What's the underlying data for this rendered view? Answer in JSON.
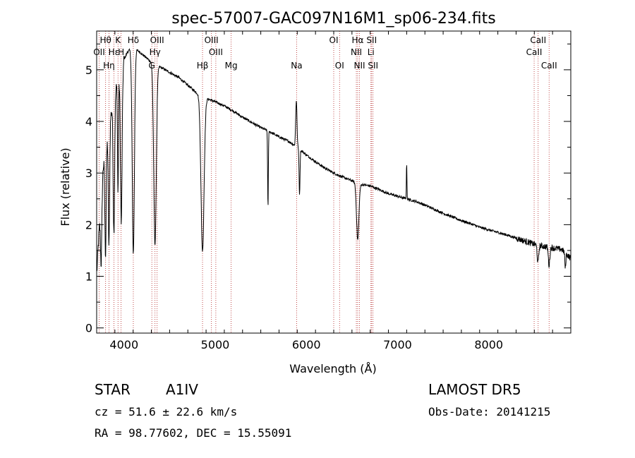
{
  "chart_data": {
    "type": "line",
    "title": "spec-57007-GAC097N16M1_sp06-234.fits",
    "xlabel": "Wavelength (Å)",
    "ylabel": "Flux (relative)",
    "xlim": [
      3700,
      8900
    ],
    "ylim": [
      -0.1,
      5.75
    ],
    "xticks": [
      4000,
      5000,
      6000,
      7000,
      8000
    ],
    "yticks": [
      0,
      1,
      2,
      3,
      4,
      5
    ],
    "grid": false,
    "colors": {
      "spectrum": "#000000",
      "lines": "#b22222"
    },
    "continuum": [
      [
        3700,
        1.0
      ],
      [
        3760,
        3.0
      ],
      [
        3820,
        3.7
      ],
      [
        3880,
        4.4
      ],
      [
        3950,
        4.9
      ],
      [
        4000,
        5.2
      ],
      [
        4040,
        5.35
      ],
      [
        4100,
        5.45
      ],
      [
        4200,
        5.3
      ],
      [
        4300,
        5.15
      ],
      [
        4400,
        5.05
      ],
      [
        4500,
        4.95
      ],
      [
        4600,
        4.85
      ],
      [
        4700,
        4.7
      ],
      [
        4800,
        4.55
      ],
      [
        4900,
        4.45
      ],
      [
        5000,
        4.38
      ],
      [
        5100,
        4.3
      ],
      [
        5200,
        4.2
      ],
      [
        5300,
        4.08
      ],
      [
        5400,
        3.98
      ],
      [
        5500,
        3.88
      ],
      [
        5600,
        3.8
      ],
      [
        5700,
        3.7
      ],
      [
        5800,
        3.62
      ],
      [
        5900,
        3.5
      ],
      [
        6000,
        3.35
      ],
      [
        6100,
        3.22
      ],
      [
        6200,
        3.1
      ],
      [
        6300,
        3.0
      ],
      [
        6400,
        2.92
      ],
      [
        6500,
        2.85
      ],
      [
        6600,
        2.78
      ],
      [
        6700,
        2.75
      ],
      [
        6800,
        2.68
      ],
      [
        6900,
        2.6
      ],
      [
        7000,
        2.55
      ],
      [
        7100,
        2.5
      ],
      [
        7200,
        2.45
      ],
      [
        7300,
        2.38
      ],
      [
        7400,
        2.3
      ],
      [
        7500,
        2.22
      ],
      [
        7600,
        2.15
      ],
      [
        7700,
        2.08
      ],
      [
        7800,
        2.02
      ],
      [
        7900,
        1.95
      ],
      [
        8000,
        1.9
      ],
      [
        8100,
        1.85
      ],
      [
        8200,
        1.8
      ],
      [
        8300,
        1.74
      ],
      [
        8400,
        1.68
      ],
      [
        8500,
        1.62
      ],
      [
        8600,
        1.58
      ],
      [
        8700,
        1.55
      ],
      [
        8800,
        1.52
      ],
      [
        8900,
        1.35
      ]
    ],
    "features": [
      {
        "center": 3750,
        "depth": 1.4,
        "width": 8
      },
      {
        "center": 3797,
        "depth": 2.0,
        "width": 7
      },
      {
        "center": 3835,
        "depth": 2.3,
        "width": 7
      },
      {
        "center": 3889,
        "depth": 2.6,
        "width": 8
      },
      {
        "center": 3934,
        "depth": 2.2,
        "width": 5
      },
      {
        "center": 3970,
        "depth": 3.0,
        "width": 9
      },
      {
        "center": 4102,
        "depth": 4.0,
        "width": 12
      },
      {
        "center": 4340,
        "depth": 3.5,
        "width": 14
      },
      {
        "center": 4861,
        "depth": 3.0,
        "width": 17
      },
      {
        "center": 5579,
        "depth": 1.5,
        "width": 4
      },
      {
        "center": 5890,
        "depth": -0.9,
        "width": 7
      },
      {
        "center": 5925,
        "depth": 0.9,
        "width": 5
      },
      {
        "center": 6563,
        "depth": 1.1,
        "width": 13
      },
      {
        "center": 7100,
        "depth": -0.7,
        "width": 3
      },
      {
        "center": 8540,
        "depth": 0.35,
        "width": 8
      },
      {
        "center": 8662,
        "depth": 0.35,
        "width": 8
      },
      {
        "center": 8840,
        "depth": 0.3,
        "width": 5
      }
    ],
    "spectral_lines": [
      {
        "label": "Hθ",
        "wavelength": 3798,
        "row": 0
      },
      {
        "label": "K",
        "wavelength": 3934,
        "row": 0
      },
      {
        "label": "Hδ",
        "wavelength": 4102,
        "row": 0
      },
      {
        "label": "OIII",
        "wavelength": 4363,
        "row": 0
      },
      {
        "label": "OIII",
        "wavelength": 4959,
        "row": 0
      },
      {
        "label": "OI",
        "wavelength": 6300,
        "row": 0
      },
      {
        "label": "Hα",
        "wavelength": 6563,
        "row": 0
      },
      {
        "label": "SII",
        "wavelength": 6716,
        "row": 0
      },
      {
        "label": "CaII",
        "wavelength": 8542,
        "row": 0
      },
      {
        "label": "OII",
        "wavelength": 3727,
        "row": 1
      },
      {
        "label": "Hε",
        "wavelength": 3889,
        "row": 1
      },
      {
        "label": "H",
        "wavelength": 3968,
        "row": 1
      },
      {
        "label": "Hγ",
        "wavelength": 4340,
        "row": 1
      },
      {
        "label": "OIII",
        "wavelength": 5007,
        "row": 1
      },
      {
        "label": "NII",
        "wavelength": 6548,
        "row": 1
      },
      {
        "label": "Li",
        "wavelength": 6708,
        "row": 1
      },
      {
        "label": "CaII",
        "wavelength": 8498,
        "row": 1
      },
      {
        "label": "Hη",
        "wavelength": 3835,
        "row": 2
      },
      {
        "label": "G",
        "wavelength": 4305,
        "row": 2
      },
      {
        "label": "Hβ",
        "wavelength": 4861,
        "row": 2
      },
      {
        "label": "Mg",
        "wavelength": 5175,
        "row": 2
      },
      {
        "label": "Na",
        "wavelength": 5893,
        "row": 2
      },
      {
        "label": "OI",
        "wavelength": 6364,
        "row": 2
      },
      {
        "label": "NII",
        "wavelength": 6583,
        "row": 2
      },
      {
        "label": "SII",
        "wavelength": 6731,
        "row": 2
      },
      {
        "label": "CaII",
        "wavelength": 8662,
        "row": 2
      }
    ]
  },
  "info": {
    "class_label": "STAR",
    "subclass": "A1IV",
    "survey": "LAMOST  DR5",
    "cz": "cz = 51.6 ± 22.6 km/s",
    "obs_date": "Obs-Date: 20141215",
    "coords": "RA =  98.77602, DEC =  15.55091"
  }
}
